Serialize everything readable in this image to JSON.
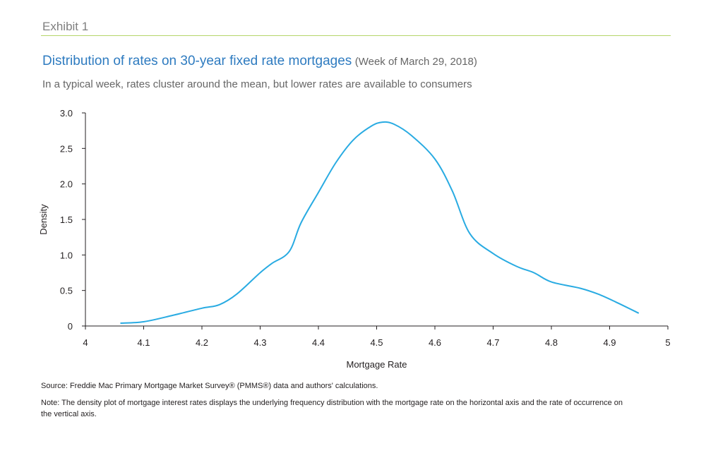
{
  "header": {
    "exhibit": "Exhibit 1",
    "title": "Distribution of rates on 30-year fixed rate mortgages",
    "title_note": "(Week of March 29, 2018)",
    "subtitle": "In a typical week, rates cluster around the mean, but lower rates are available to consumers"
  },
  "footer": {
    "source": "Source: Freddie Mac Primary Mortgage Market Survey® (PMMS®) data and authors' calculations.",
    "note": "Note: The density plot of mortgage interest rates displays the underlying frequency distribution with the mortgage rate on the horizontal axis and the rate of occurrence on the vertical axis."
  },
  "colors": {
    "accent_rule": "#b5d56a",
    "title": "#2e7bc0",
    "line": "#29abe2"
  },
  "chart_data": {
    "type": "line",
    "xlabel": "Mortgage Rate",
    "ylabel": "Density",
    "xlim": [
      4,
      5
    ],
    "ylim": [
      0,
      3
    ],
    "x_ticks": [
      "4",
      "4.1",
      "4.2",
      "4.3",
      "4.4",
      "4.5",
      "4.6",
      "4.7",
      "4.8",
      "4.9",
      "5"
    ],
    "y_ticks": [
      "0",
      "0.5",
      "1.0",
      "1.5",
      "2.0",
      "2.5",
      "3.0"
    ],
    "grid": false,
    "series": [
      {
        "x": [
          4.06,
          4.1,
          4.15,
          4.2,
          4.23,
          4.26,
          4.3,
          4.32,
          4.35,
          4.37,
          4.4,
          4.43,
          4.46,
          4.49,
          4.51,
          4.53,
          4.56,
          4.6,
          4.63,
          4.66,
          4.7,
          4.74,
          4.77,
          4.8,
          4.85,
          4.88,
          4.91,
          4.95
        ],
        "y": [
          0.04,
          0.06,
          0.15,
          0.25,
          0.3,
          0.45,
          0.75,
          0.88,
          1.05,
          1.45,
          1.88,
          2.3,
          2.62,
          2.81,
          2.87,
          2.84,
          2.68,
          2.35,
          1.9,
          1.3,
          1.02,
          0.84,
          0.75,
          0.62,
          0.53,
          0.45,
          0.34,
          0.18
        ]
      }
    ]
  }
}
